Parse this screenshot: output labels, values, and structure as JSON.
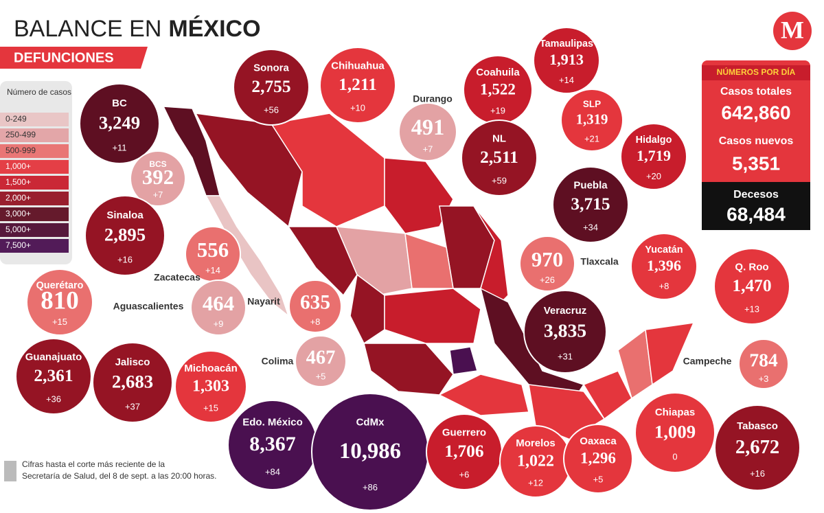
{
  "header": {
    "title_plain": "BALANCE EN",
    "title_bold": "MÉXICO",
    "subtitle": "DEFUNCIONES",
    "logo": "M"
  },
  "legend": {
    "title": "Número de casos",
    "items": [
      {
        "label": "0-249",
        "color": "#e9c4c4"
      },
      {
        "label": "250-499",
        "color": "#e3a2a4"
      },
      {
        "label": "500-999",
        "color": "#e9706f"
      },
      {
        "label": "1,000+",
        "color": "#e4363d"
      },
      {
        "label": "1,500+",
        "color": "#c81d2c"
      },
      {
        "label": "2,000+",
        "color": "#951424"
      },
      {
        "label": "3,000+",
        "color": "#5e0f22"
      },
      {
        "label": "5,000+",
        "color": "#4e0d33"
      },
      {
        "label": "7,500+",
        "color": "#4a1050"
      }
    ]
  },
  "states": [
    {
      "name": "Sonora",
      "total": "2,755",
      "new": "+56"
    },
    {
      "name": "Chihuahua",
      "total": "1,211",
      "new": "+10"
    },
    {
      "name": "Tamaulipas",
      "total": "1,913",
      "new": "+14"
    },
    {
      "name": "Coahuila",
      "total": "1,522",
      "new": "+19"
    },
    {
      "name": "Durango",
      "total": "491",
      "new": "+7"
    },
    {
      "name": "BC",
      "total": "3,249",
      "new": "+11"
    },
    {
      "name": "SLP",
      "total": "1,319",
      "new": "+21"
    },
    {
      "name": "NL",
      "total": "2,511",
      "new": "+59"
    },
    {
      "name": "Hidalgo",
      "total": "1,719",
      "new": "+20"
    },
    {
      "name": "BCS",
      "total": "392",
      "new": "+7"
    },
    {
      "name": "Puebla",
      "total": "3,715",
      "new": "+34"
    },
    {
      "name": "Sinaloa",
      "total": "2,895",
      "new": "+16"
    },
    {
      "name": "Zacatecas",
      "total": "556",
      "new": "+14"
    },
    {
      "name": "Tlaxcala",
      "total": "970",
      "new": "+26"
    },
    {
      "name": "Yucatán",
      "total": "1,396",
      "new": "+8"
    },
    {
      "name": "Q. Roo",
      "total": "1,470",
      "new": "+13"
    },
    {
      "name": "Querétaro",
      "total": "810",
      "new": "+15"
    },
    {
      "name": "Aguascalientes",
      "total": "464",
      "new": "+9"
    },
    {
      "name": "Nayarit",
      "total": "635",
      "new": "+8"
    },
    {
      "name": "Veracruz",
      "total": "3,835",
      "new": "+31"
    },
    {
      "name": "Guanajuato",
      "total": "2,361",
      "new": "+36"
    },
    {
      "name": "Jalisco",
      "total": "2,683",
      "new": "+37"
    },
    {
      "name": "Michoacán",
      "total": "1,303",
      "new": "+15"
    },
    {
      "name": "Colima",
      "total": "467",
      "new": "+5"
    },
    {
      "name": "Campeche",
      "total": "784",
      "new": "+3"
    },
    {
      "name": "Edo. México",
      "total": "8,367",
      "new": "+84"
    },
    {
      "name": "CdMx",
      "total": "10,986",
      "new": "+86"
    },
    {
      "name": "Guerrero",
      "total": "1,706",
      "new": "+6"
    },
    {
      "name": "Morelos",
      "total": "1,022",
      "new": "+12"
    },
    {
      "name": "Oaxaca",
      "total": "1,296",
      "new": "+5"
    },
    {
      "name": "Chiapas",
      "total": "1,009",
      "new": "0"
    },
    {
      "name": "Tabasco",
      "total": "2,672",
      "new": "+16"
    }
  ],
  "stats": {
    "title": "NÚMEROS POR DÍA",
    "total_label": "Casos totales",
    "total": "642,860",
    "new_label": "Casos nuevos",
    "new": "5,351",
    "deaths_label": "Decesos",
    "deaths": "68,484"
  },
  "footnote": [
    "Cifras hasta el corte más reciente de la",
    "Secretaría de Salud, del 8 de sept. a las 20:00 horas."
  ]
}
